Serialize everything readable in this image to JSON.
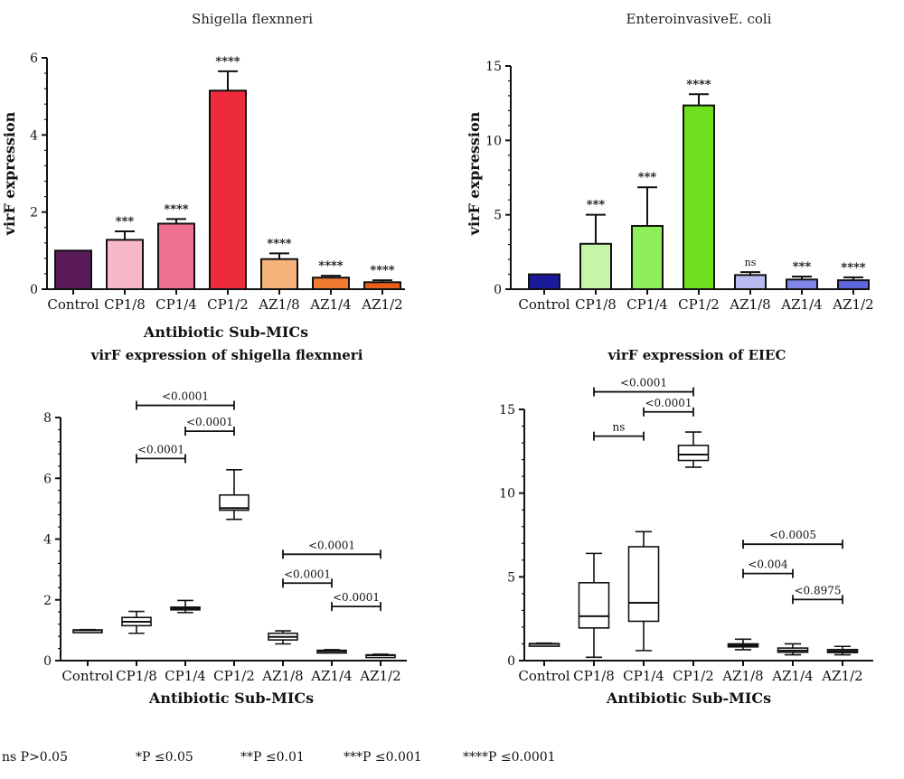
{
  "chart_data": [
    {
      "type": "bar",
      "title": "Shigella flexnneri",
      "xlabel": "Antibiotic Sub-MICs",
      "ylabel": "virF expression",
      "ylim": [
        0,
        6
      ],
      "yticks": [
        0,
        2,
        4,
        6
      ],
      "categories": [
        "Control",
        "CP1/8",
        "CP1/4",
        "CP1/2",
        "AZ1/8",
        "AZ1/4",
        "AZ1/2"
      ],
      "values": [
        1.0,
        1.28,
        1.7,
        5.15,
        0.78,
        0.3,
        0.18
      ],
      "errors": [
        0.0,
        0.22,
        0.12,
        0.5,
        0.15,
        0.05,
        0.05
      ],
      "annotations": [
        "",
        "***",
        "****",
        "****",
        "****",
        "****",
        "****"
      ],
      "colors": [
        "#5a1a5a",
        "#f7b8c8",
        "#ef7093",
        "#ee2b3c",
        "#f5b27a",
        "#f07a30",
        "#e8601e"
      ]
    },
    {
      "type": "bar",
      "title": "EnteroinvasiveE. coli",
      "xlabel": "",
      "ylabel": "virF expression",
      "ylim": [
        0,
        15
      ],
      "yticks": [
        0,
        5,
        10,
        15
      ],
      "categories": [
        "Control",
        "CP1/8",
        "CP1/4",
        "CP1/2",
        "AZ1/8",
        "AZ1/4",
        "AZ1/2"
      ],
      "values": [
        1.0,
        3.05,
        4.25,
        12.35,
        0.95,
        0.65,
        0.6
      ],
      "errors": [
        0.0,
        1.95,
        2.6,
        0.75,
        0.2,
        0.2,
        0.2
      ],
      "annotations": [
        "",
        "***",
        "***",
        "****",
        "ns",
        "***",
        "****"
      ],
      "colors": [
        "#1a1a9a",
        "#c6f5a8",
        "#8eef5a",
        "#6ee01e",
        "#b8bcf0",
        "#7f86e8",
        "#5e66e0"
      ]
    },
    {
      "type": "box",
      "title": "virF expression of shigella flexnneri",
      "xlabel": "Antibiotic Sub-MICs",
      "ylabel": "",
      "ylim": [
        0,
        8
      ],
      "yticks": [
        0,
        2,
        4,
        6,
        8
      ],
      "categories": [
        "Control",
        "CP1/8",
        "CP1/4",
        "CP1/2",
        "AZ1/8",
        "AZ1/4",
        "AZ1/2"
      ],
      "boxes": [
        {
          "min": 0.98,
          "q1": 0.99,
          "median": 1.0,
          "q3": 1.01,
          "max": 1.02
        },
        {
          "min": 0.9,
          "q1": 1.15,
          "median": 1.28,
          "q3": 1.42,
          "max": 1.62
        },
        {
          "min": 1.58,
          "q1": 1.68,
          "median": 1.72,
          "q3": 1.76,
          "max": 1.98
        },
        {
          "min": 4.65,
          "q1": 4.95,
          "median": 5.02,
          "q3": 5.45,
          "max": 6.28
        },
        {
          "min": 0.55,
          "q1": 0.68,
          "median": 0.78,
          "q3": 0.9,
          "max": 0.98
        },
        {
          "min": 0.26,
          "q1": 0.29,
          "median": 0.31,
          "q3": 0.34,
          "max": 0.36
        },
        {
          "min": 0.15,
          "q1": 0.17,
          "median": 0.18,
          "q3": 0.19,
          "max": 0.21
        }
      ],
      "brackets": [
        {
          "from": 1,
          "to": 3,
          "y": 8.4,
          "label": "<0.0001"
        },
        {
          "from": 2,
          "to": 3,
          "y": 7.55,
          "label": "<0.0001"
        },
        {
          "from": 1,
          "to": 2,
          "y": 6.65,
          "label": "<0.0001"
        },
        {
          "from": 4,
          "to": 6,
          "y": 3.5,
          "label": "<0.0001"
        },
        {
          "from": 4,
          "to": 5,
          "y": 2.55,
          "label": "<0.0001"
        },
        {
          "from": 5,
          "to": 6,
          "y": 1.78,
          "label": "<0.0001"
        }
      ]
    },
    {
      "type": "box",
      "title": "virF expression of EIEC",
      "xlabel": "Antibiotic Sub-MICs",
      "ylabel": "",
      "ylim": [
        0,
        15
      ],
      "yticks": [
        0,
        5,
        10,
        15
      ],
      "categories": [
        "Control",
        "CP1/8",
        "CP1/4",
        "CP1/2",
        "AZ1/8",
        "AZ1/4",
        "AZ1/2"
      ],
      "boxes": [
        {
          "min": 0.98,
          "q1": 0.99,
          "median": 1.0,
          "q3": 1.02,
          "max": 1.04
        },
        {
          "min": 0.2,
          "q1": 1.95,
          "median": 2.65,
          "q3": 4.65,
          "max": 6.4
        },
        {
          "min": 0.6,
          "q1": 2.35,
          "median": 3.45,
          "q3": 6.8,
          "max": 7.7
        },
        {
          "min": 11.55,
          "q1": 11.95,
          "median": 12.3,
          "q3": 12.85,
          "max": 13.65
        },
        {
          "min": 0.65,
          "q1": 0.82,
          "median": 0.92,
          "q3": 1.0,
          "max": 1.28
        },
        {
          "min": 0.35,
          "q1": 0.5,
          "median": 0.6,
          "q3": 0.75,
          "max": 1.0
        },
        {
          "min": 0.35,
          "q1": 0.48,
          "median": 0.56,
          "q3": 0.66,
          "max": 0.85
        }
      ],
      "brackets": [
        {
          "from": 1,
          "to": 3,
          "y": 16.05,
          "label": "<0.0001"
        },
        {
          "from": 2,
          "to": 3,
          "y": 14.85,
          "label": "<0.0001"
        },
        {
          "from": 1,
          "to": 2,
          "y": 13.4,
          "label": "ns"
        },
        {
          "from": 4,
          "to": 6,
          "y": 6.95,
          "label": "<0.0005"
        },
        {
          "from": 4,
          "to": 5,
          "y": 5.2,
          "label": "<0.004"
        },
        {
          "from": 5,
          "to": 6,
          "y": 3.65,
          "label": "<0.8975"
        }
      ]
    }
  ],
  "legend_items": [
    "ns P>0.05",
    "*P ≤0.05",
    "**P ≤0.01",
    "***P ≤0.001",
    "****P ≤0.0001"
  ]
}
